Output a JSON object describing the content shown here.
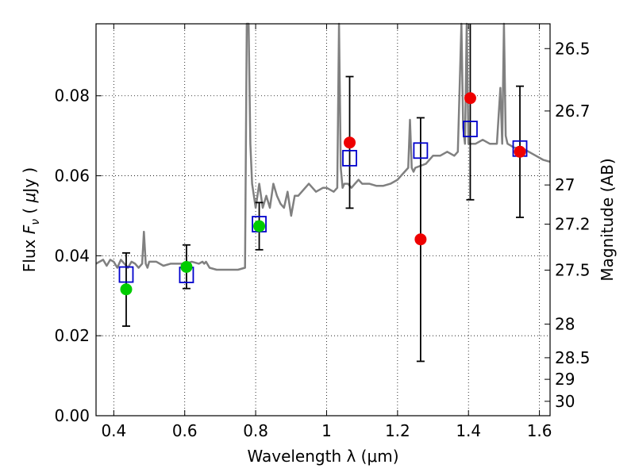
{
  "chart_data": {
    "type": "scatter",
    "xlabel": "Wavelength  λ (μm)",
    "ylabel_left": [
      "Flux ",
      "F",
      "ν",
      " ( ",
      "μ",
      "Jy )"
    ],
    "ylabel_right": "Magnitude (AB)",
    "xlim": [
      0.35,
      1.63
    ],
    "ylim": [
      0.0,
      0.098
    ],
    "grid": true,
    "x_ticks": [
      0.4,
      0.6,
      0.8,
      1.0,
      1.2,
      1.4,
      1.6
    ],
    "x_tick_labels": [
      "0.4",
      "0.6",
      "0.8",
      "1",
      "1.2",
      "1.4",
      "1.6"
    ],
    "y_ticks": [
      0.0,
      0.02,
      0.04,
      0.06,
      0.08
    ],
    "y_tick_labels": [
      "0.00",
      "0.02",
      "0.04",
      "0.06",
      "0.08"
    ],
    "right_ticks": [
      {
        "label": "26.5",
        "flux": 0.0918
      },
      {
        "label": "26.7",
        "flux": 0.0762
      },
      {
        "label": "27",
        "flux": 0.0577
      },
      {
        "label": "27.2",
        "flux": 0.0479
      },
      {
        "label": "27.5",
        "flux": 0.0364
      },
      {
        "label": "28",
        "flux": 0.0229
      },
      {
        "label": "28.5",
        "flux": 0.0145
      },
      {
        "label": "29",
        "flux": 0.0091
      },
      {
        "label": "30",
        "flux": 0.0036
      }
    ],
    "model_spectrum": {
      "color": "#808080",
      "x": [
        0.35,
        0.37,
        0.38,
        0.39,
        0.4,
        0.41,
        0.42,
        0.43,
        0.44,
        0.45,
        0.46,
        0.47,
        0.48,
        0.485,
        0.49,
        0.495,
        0.5,
        0.52,
        0.54,
        0.56,
        0.58,
        0.6,
        0.62,
        0.64,
        0.65,
        0.655,
        0.66,
        0.67,
        0.69,
        0.71,
        0.73,
        0.75,
        0.77,
        0.775,
        0.78,
        0.785,
        0.79,
        0.8,
        0.81,
        0.82,
        0.83,
        0.84,
        0.85,
        0.86,
        0.87,
        0.88,
        0.89,
        0.9,
        0.91,
        0.92,
        0.93,
        0.95,
        0.97,
        0.99,
        1.0,
        1.02,
        1.03,
        1.035,
        1.04,
        1.045,
        1.05,
        1.06,
        1.07,
        1.08,
        1.09,
        1.1,
        1.12,
        1.14,
        1.16,
        1.18,
        1.2,
        1.22,
        1.23,
        1.235,
        1.24,
        1.245,
        1.25,
        1.28,
        1.3,
        1.32,
        1.34,
        1.36,
        1.37,
        1.38,
        1.385,
        1.39,
        1.395,
        1.4,
        1.42,
        1.44,
        1.46,
        1.48,
        1.49,
        1.495,
        1.5,
        1.505,
        1.51,
        1.53,
        1.55,
        1.57,
        1.59,
        1.61,
        1.63
      ],
      "y": [
        0.038,
        0.039,
        0.0375,
        0.039,
        0.0385,
        0.037,
        0.039,
        0.038,
        0.037,
        0.0385,
        0.038,
        0.037,
        0.038,
        0.046,
        0.038,
        0.037,
        0.0385,
        0.0385,
        0.0375,
        0.038,
        0.038,
        0.038,
        0.0385,
        0.038,
        0.0385,
        0.038,
        0.0385,
        0.037,
        0.0365,
        0.0365,
        0.0365,
        0.0365,
        0.037,
        0.098,
        0.098,
        0.068,
        0.058,
        0.052,
        0.058,
        0.052,
        0.055,
        0.052,
        0.058,
        0.055,
        0.053,
        0.052,
        0.056,
        0.05,
        0.055,
        0.055,
        0.056,
        0.058,
        0.056,
        0.057,
        0.057,
        0.056,
        0.057,
        0.098,
        0.062,
        0.057,
        0.058,
        0.058,
        0.057,
        0.058,
        0.059,
        0.058,
        0.058,
        0.0575,
        0.0575,
        0.058,
        0.059,
        0.061,
        0.062,
        0.074,
        0.062,
        0.061,
        0.062,
        0.063,
        0.065,
        0.065,
        0.066,
        0.065,
        0.066,
        0.098,
        0.072,
        0.068,
        0.098,
        0.068,
        0.068,
        0.069,
        0.068,
        0.068,
        0.082,
        0.068,
        0.098,
        0.07,
        0.068,
        0.067,
        0.067,
        0.066,
        0.065,
        0.064,
        0.0635
      ]
    },
    "model_photometry": {
      "color": "#0000cc",
      "marker": "open-square",
      "x": [
        0.435,
        0.605,
        0.81,
        1.065,
        1.265,
        1.405,
        1.545
      ],
      "y": [
        0.0353,
        0.0352,
        0.0479,
        0.0644,
        0.0663,
        0.0717,
        0.0668
      ]
    },
    "observed_detections": {
      "color": "#00cc00",
      "x": [
        0.435,
        0.605,
        0.81
      ],
      "y": [
        0.0316,
        0.0372,
        0.0474
      ],
      "err_low": [
        0.0224,
        0.0318,
        0.0415
      ],
      "err_high": [
        0.0407,
        0.0427,
        0.0533
      ]
    },
    "observed_nir": {
      "color": "#ee0000",
      "x": [
        1.065,
        1.265,
        1.405,
        1.545
      ],
      "y": [
        0.0683,
        0.0441,
        0.0794,
        0.066
      ],
      "err_low": [
        0.0519,
        0.0136,
        0.054,
        0.0496
      ],
      "err_high": [
        0.0848,
        0.0745,
        0.098,
        0.0824
      ]
    }
  }
}
